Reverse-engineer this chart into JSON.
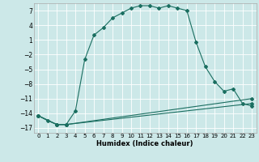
{
  "xlabel": "Humidex (Indice chaleur)",
  "bg_color": "#cce8e8",
  "grid_color": "#ffffff",
  "line_color": "#1a6e60",
  "xlim": [
    -0.5,
    23.5
  ],
  "ylim": [
    -18,
    8.5
  ],
  "yticks": [
    7,
    4,
    1,
    -2,
    -5,
    -8,
    -11,
    -14,
    -17
  ],
  "xticks": [
    0,
    1,
    2,
    3,
    4,
    5,
    6,
    7,
    8,
    9,
    10,
    11,
    12,
    13,
    14,
    15,
    16,
    17,
    18,
    19,
    20,
    21,
    22,
    23
  ],
  "line1_x": [
    0,
    1,
    2,
    3,
    4,
    5,
    6,
    7,
    8,
    9,
    10,
    11,
    12,
    13,
    14,
    15,
    16,
    17,
    18,
    19,
    20,
    21,
    22,
    23
  ],
  "line1_y": [
    -14.5,
    -15.5,
    -16.3,
    -16.3,
    -13.5,
    -3.0,
    2.0,
    3.5,
    5.5,
    6.5,
    7.5,
    8.0,
    8.0,
    7.5,
    8.0,
    7.5,
    7.0,
    0.5,
    -4.5,
    -7.5,
    -9.5,
    -9.0,
    -12.0,
    -12.5
  ],
  "line2_x": [
    0,
    2,
    3,
    23
  ],
  "line2_y": [
    -14.5,
    -16.3,
    -16.3,
    -12.0
  ],
  "line3_x": [
    0,
    2,
    3,
    23
  ],
  "line3_y": [
    -14.5,
    -16.3,
    -16.3,
    -11.0
  ]
}
